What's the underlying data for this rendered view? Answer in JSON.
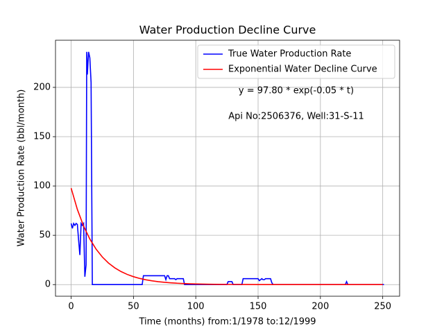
{
  "chart_data": {
    "type": "line",
    "title": "Water Production Decline Curve",
    "xlabel": "Time (months) from:1/1978 to:12/1999",
    "ylabel": "Water Production Rate (bbl/month)",
    "annotations": [
      "y = 97.80 * exp(-0.05 * t)",
      "Api No:2506376, Well:31-S-11"
    ],
    "xlim": [
      -12.55,
      263.55
    ],
    "ylim": [
      -11.8,
      247.8
    ],
    "xticks": [
      0,
      50,
      100,
      150,
      200,
      250
    ],
    "yticks": [
      0,
      50,
      100,
      150,
      200
    ],
    "grid": true,
    "legend": "upper right",
    "series": [
      {
        "name": "True Water Production Rate",
        "color": "#0000ff",
        "x": [
          0,
          1,
          2,
          3,
          4,
          5,
          6,
          7,
          8,
          9,
          10,
          11,
          12,
          12.5,
          13,
          14,
          15,
          16,
          17,
          57,
          58,
          75,
          76,
          77,
          78,
          79,
          83,
          84,
          85,
          90,
          91,
          125,
          126,
          129,
          130,
          137,
          138,
          150,
          151,
          152,
          153,
          154,
          155,
          156,
          160,
          161,
          162,
          220,
          221,
          222,
          251
        ],
        "values": [
          62,
          57,
          62,
          60,
          62,
          61,
          45,
          30,
          62,
          60,
          62,
          8,
          20,
          236,
          213,
          236,
          230,
          205,
          0,
          0,
          9,
          9,
          5,
          9,
          9,
          6,
          6,
          5,
          6,
          6,
          0,
          0,
          3,
          3,
          0,
          0,
          6,
          6,
          4,
          5,
          6,
          5,
          5,
          6,
          6,
          2,
          0,
          0,
          3,
          0,
          0
        ]
      },
      {
        "name": "Exponential Water Decline Curve",
        "color": "#ff0000",
        "x": [
          0,
          5,
          10,
          15,
          20,
          25,
          30,
          35,
          40,
          45,
          50,
          55,
          60,
          65,
          70,
          75,
          80,
          85,
          90,
          95,
          100,
          110,
          120,
          130,
          140,
          150,
          175,
          200,
          250
        ],
        "values": [
          97.8,
          76.17,
          59.32,
          46.2,
          35.98,
          28.02,
          21.82,
          17.0,
          13.24,
          10.31,
          8.03,
          6.25,
          4.87,
          3.79,
          2.95,
          2.3,
          1.79,
          1.39,
          1.09,
          0.85,
          0.66,
          0.4,
          0.24,
          0.15,
          0.09,
          0.05,
          0.02,
          0.0,
          0.0
        ]
      }
    ]
  }
}
